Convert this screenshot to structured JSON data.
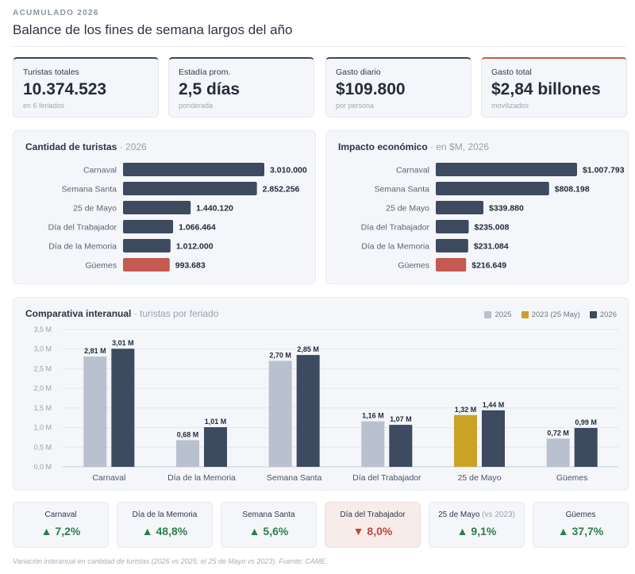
{
  "header": {
    "eyebrow": "ACUMULADO 2026",
    "title": "Balance de los fines de semana largos del año"
  },
  "kpis": [
    {
      "label": "Turistas totales",
      "value": "10.374.523",
      "sub": "en 6 feriados"
    },
    {
      "label": "Estadía prom.",
      "value": "2,5 días",
      "sub": "ponderada"
    },
    {
      "label": "Gasto diario",
      "value": "$109.800",
      "sub": "por persona"
    },
    {
      "label": "Gasto total",
      "value": "$2,84 billones",
      "sub": "movilizados"
    }
  ],
  "panels": {
    "tourists": {
      "title": "Cantidad de turistas",
      "subtitle": " · 2026"
    },
    "impact": {
      "title": "Impacto económico",
      "subtitle": " · en $M, 2026"
    },
    "compare": {
      "title": "Comparativa interanual",
      "subtitle": " · turistas por feriado"
    }
  },
  "colors": {
    "dark": "#3d4a60",
    "highlight": "#c45a50",
    "light": "#b9c1cf",
    "gold": "#c9a227"
  },
  "chart_data": [
    {
      "type": "bar",
      "orientation": "horizontal",
      "title": "Cantidad de turistas · 2026",
      "categories": [
        "Carnaval",
        "Semana Santa",
        "25 de Mayo",
        "Día del Trabajador",
        "Día de la Memoria",
        "Güemes"
      ],
      "values": [
        3010000,
        2852256,
        1440120,
        1066464,
        1012000,
        993683
      ],
      "labels": [
        "3.010.000",
        "2.852.256",
        "1.440.120",
        "1.066.464",
        "1.012.000",
        "993.683"
      ],
      "highlight_index": 5
    },
    {
      "type": "bar",
      "orientation": "horizontal",
      "title": "Impacto económico · en $M, 2026",
      "categories": [
        "Carnaval",
        "Semana Santa",
        "25 de Mayo",
        "Día del Trabajador",
        "Día de la Memoria",
        "Güemes"
      ],
      "values": [
        1007793,
        808198,
        339880,
        235008,
        231084,
        216649
      ],
      "labels": [
        "$1.007.793",
        "$808.198",
        "$339.880",
        "$235.008",
        "$231.084",
        "$216.649"
      ],
      "highlight_index": 5
    },
    {
      "type": "bar",
      "orientation": "vertical",
      "title": "Comparativa interanual · turistas por feriado",
      "ylim": [
        0,
        3.5
      ],
      "y_ticks": [
        "0,0 M",
        "0,5 M",
        "1,0 M",
        "1,5 M",
        "2,0 M",
        "2,5 M",
        "3,0 M",
        "3,5 M"
      ],
      "legend": [
        {
          "name": "2025",
          "color": "#b9c1cf"
        },
        {
          "name": "2023 (25 May)",
          "color": "#c9a227"
        },
        {
          "name": "2026",
          "color": "#3d4a60"
        }
      ],
      "legend_position": "top-right",
      "categories": [
        "Carnaval",
        "Día de la Memoria",
        "Semana Santa",
        "Día del Trabajador",
        "25 de Mayo",
        "Güemes"
      ],
      "previous": {
        "values": [
          2.81,
          0.68,
          2.7,
          1.16,
          1.32,
          0.72
        ],
        "labels": [
          "2,81 M",
          "0,68 M",
          "2,70 M",
          "1,16 M",
          "1,32 M",
          "0,72 M"
        ],
        "series": [
          "2025",
          "2025",
          "2025",
          "2025",
          "2023 (25 May)",
          "2025"
        ]
      },
      "current": {
        "name": "2026",
        "values": [
          3.01,
          1.01,
          2.85,
          1.07,
          1.44,
          0.99
        ],
        "labels": [
          "3,01 M",
          "1,01 M",
          "2,85 M",
          "1,07 M",
          "1,44 M",
          "0,99 M"
        ]
      }
    }
  ],
  "variations": [
    {
      "label": "Carnaval",
      "suffix": "",
      "value": "▲ 7,2%",
      "negative": false
    },
    {
      "label": "Día de la Memoria",
      "suffix": "",
      "value": "▲ 48,8%",
      "negative": false
    },
    {
      "label": "Semana Santa",
      "suffix": "",
      "value": "▲ 5,6%",
      "negative": false
    },
    {
      "label": "Día del Trabajador",
      "suffix": "",
      "value": "▼ 8,0%",
      "negative": true
    },
    {
      "label": "25 de Mayo",
      "suffix": " (vs 2023)",
      "value": "▲ 9,1%",
      "negative": false
    },
    {
      "label": "Güemes",
      "suffix": "",
      "value": "▲ 37,7%",
      "negative": false
    }
  ],
  "footnote": "Variación interanual en cantidad de turistas (2026 vs 2025; el 25 de Mayo vs 2023). Fuente: CAME."
}
